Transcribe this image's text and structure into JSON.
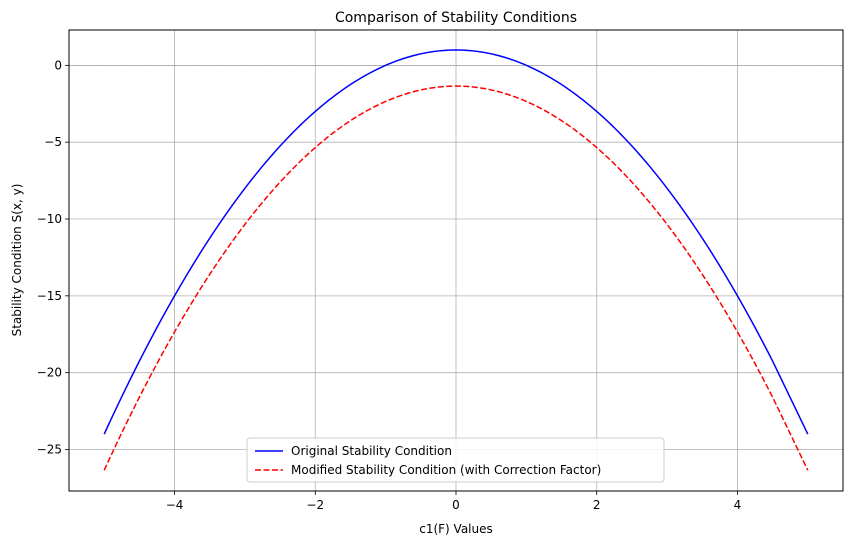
{
  "chart_data": {
    "type": "line",
    "title": "Comparison of Stability Conditions",
    "xlabel": "c1(F) Values",
    "ylabel": "Stability Condition S(x, y)",
    "xlim": [
      -5.5,
      5.5
    ],
    "ylim": [
      -27.7,
      2.3
    ],
    "x_ticks": [
      -4,
      -2,
      0,
      2,
      4
    ],
    "x_tick_labels": [
      "−4",
      "−2",
      "0",
      "2",
      "4"
    ],
    "y_ticks": [
      0,
      -5,
      -10,
      -15,
      -20,
      -25
    ],
    "y_tick_labels": [
      "0",
      "−5",
      "−10",
      "−15",
      "−20",
      "−25"
    ],
    "grid": true,
    "reference_line_y": 0,
    "legend_position": "lower-center",
    "x": [
      -5,
      -4.5,
      -4,
      -3.5,
      -3,
      -2.5,
      -2,
      -1.5,
      -1,
      -0.5,
      0,
      0.5,
      1,
      1.5,
      2,
      2.5,
      3,
      3.5,
      4,
      4.5,
      5
    ],
    "series": [
      {
        "name": "Original Stability Condition",
        "color": "#0000ff",
        "style": "solid",
        "values": [
          -24,
          -19.25,
          -15,
          -11.25,
          -8,
          -5.25,
          -3,
          -1.25,
          0,
          0.75,
          1,
          0.75,
          0,
          -1.25,
          -3,
          -5.25,
          -8,
          -11.25,
          -15,
          -19.25,
          -24
        ]
      },
      {
        "name": "Modified Stability Condition (with Correction Factor)",
        "color": "#ff0000",
        "style": "dashed",
        "values": [
          -26.35,
          -21.6,
          -17.35,
          -13.6,
          -10.35,
          -7.6,
          -5.35,
          -3.6,
          -2.35,
          -1.6,
          -1.35,
          -1.6,
          -2.35,
          -3.6,
          -5.35,
          -7.6,
          -10.35,
          -13.6,
          -17.35,
          -21.6,
          -26.35
        ]
      }
    ]
  }
}
